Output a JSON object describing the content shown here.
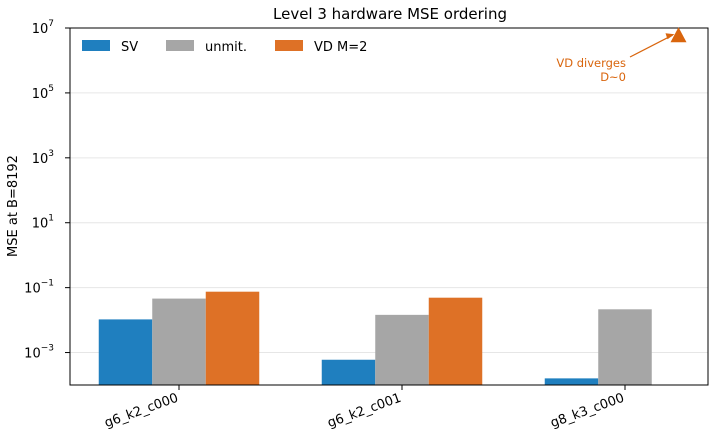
{
  "chart_data": {
    "type": "bar",
    "title": "Level 3 hardware MSE ordering",
    "ylabel": "MSE at B=8192",
    "xlabel": "",
    "yscale": "log",
    "ylim": [
      0.0001,
      10000000
    ],
    "grid": "horizontal",
    "legend_position": "top-left",
    "categories": [
      "g6_k2_c000",
      "g6_k2_c001",
      "g8_k3_c000"
    ],
    "ytick_labels": [
      {
        "base": "10",
        "exp": "7",
        "value": 10000000
      },
      {
        "base": "10",
        "exp": "5",
        "value": 100000
      },
      {
        "base": "10",
        "exp": "3",
        "value": 1000
      },
      {
        "base": "10",
        "exp": "1",
        "value": 10
      },
      {
        "base": "10",
        "exp": "−1",
        "value": 0.1
      },
      {
        "base": "10",
        "exp": "−3",
        "value": 0.001
      }
    ],
    "series": [
      {
        "name": "SV",
        "color": "#1f7fbf",
        "values": [
          0.0105,
          0.0006,
          0.00016
        ]
      },
      {
        "name": "unmit.",
        "color": "#a6a6a6",
        "values": [
          0.046,
          0.0145,
          0.0215
        ]
      },
      {
        "name": "VD M=2",
        "color": "#de7126",
        "values": [
          0.075,
          0.049,
          null
        ]
      }
    ],
    "annotation": {
      "lines": [
        "VD diverges",
        "D~0"
      ],
      "color": "#d9650d",
      "category": "g8_k3_c000",
      "series": "VD M=2",
      "marker": "triangle",
      "marker_value": 6000000
    }
  }
}
